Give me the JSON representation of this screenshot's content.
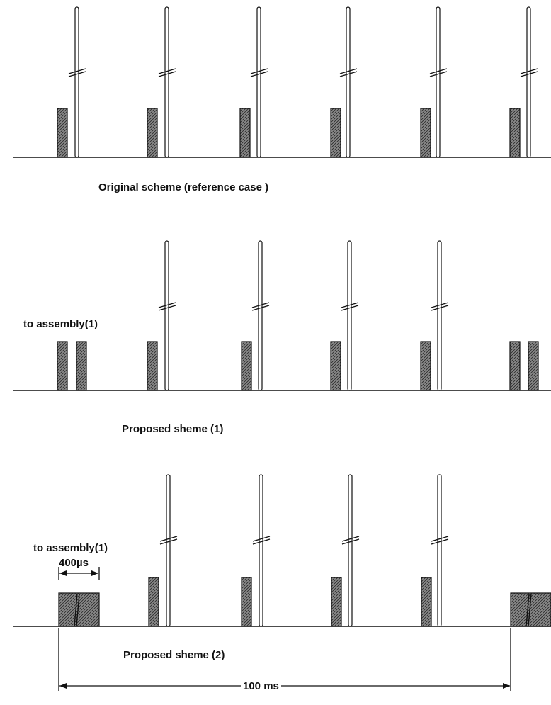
{
  "colors": {
    "ink": "#111111",
    "hatch_bg": "#8a8a8a",
    "hatch_line": "#2b2b2b"
  },
  "panels": [
    {
      "caption": "Original  scheme  (reference case )",
      "side_label": "",
      "short_pulses": 6,
      "tall_pulses": 6
    },
    {
      "caption": "Proposed sheme (1)",
      "side_label": "to assembly(1)",
      "short_pulses": 8,
      "tall_pulses": 4
    },
    {
      "caption": "Proposed sheme (2)",
      "side_label": "to assembly(1)",
      "short_pulses": 6,
      "tall_pulses": 4
    }
  ],
  "dimensions": {
    "pulse_width": "400µs",
    "period": "100 ms"
  }
}
